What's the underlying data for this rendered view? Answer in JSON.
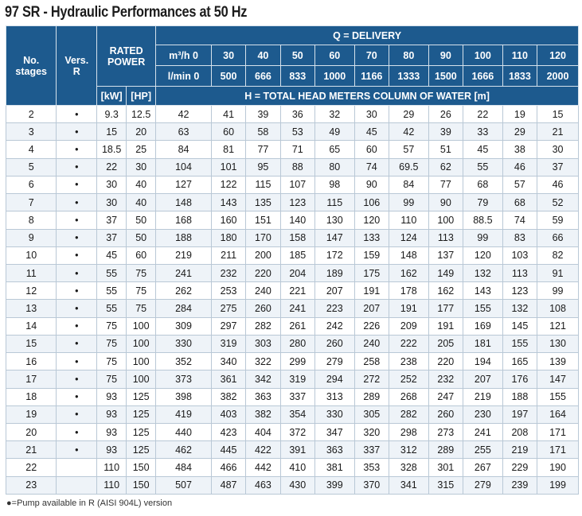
{
  "title": "97 SR - Hydraulic Performances at 50 Hz",
  "header": {
    "no_stages": "No. stages",
    "vers": "Vers. R",
    "rated_power": "RATED POWER",
    "delivery": "Q = DELIVERY",
    "m3h_label": "m³/h 0",
    "lmin_label": "l/min 0",
    "kw": "[kW]",
    "hp": "[HP]",
    "head": "H = TOTAL HEAD METERS COLUMN OF WATER [m]",
    "m3h_values": [
      "30",
      "40",
      "50",
      "60",
      "70",
      "80",
      "90",
      "100",
      "110",
      "120"
    ],
    "lmin_values": [
      "500",
      "666",
      "833",
      "1000",
      "1166",
      "1333",
      "1500",
      "1666",
      "1833",
      "2000"
    ]
  },
  "rows": [
    [
      "2",
      "•",
      "9.3",
      "12.5",
      "42",
      "41",
      "39",
      "36",
      "32",
      "30",
      "29",
      "26",
      "22",
      "19",
      "15"
    ],
    [
      "3",
      "•",
      "15",
      "20",
      "63",
      "60",
      "58",
      "53",
      "49",
      "45",
      "42",
      "39",
      "33",
      "29",
      "21"
    ],
    [
      "4",
      "•",
      "18.5",
      "25",
      "84",
      "81",
      "77",
      "71",
      "65",
      "60",
      "57",
      "51",
      "45",
      "38",
      "30"
    ],
    [
      "5",
      "•",
      "22",
      "30",
      "104",
      "101",
      "95",
      "88",
      "80",
      "74",
      "69.5",
      "62",
      "55",
      "46",
      "37"
    ],
    [
      "6",
      "•",
      "30",
      "40",
      "127",
      "122",
      "115",
      "107",
      "98",
      "90",
      "84",
      "77",
      "68",
      "57",
      "46"
    ],
    [
      "7",
      "•",
      "30",
      "40",
      "148",
      "143",
      "135",
      "123",
      "115",
      "106",
      "99",
      "90",
      "79",
      "68",
      "52"
    ],
    [
      "8",
      "•",
      "37",
      "50",
      "168",
      "160",
      "151",
      "140",
      "130",
      "120",
      "110",
      "100",
      "88.5",
      "74",
      "59"
    ],
    [
      "9",
      "•",
      "37",
      "50",
      "188",
      "180",
      "170",
      "158",
      "147",
      "133",
      "124",
      "113",
      "99",
      "83",
      "66"
    ],
    [
      "10",
      "•",
      "45",
      "60",
      "219",
      "211",
      "200",
      "185",
      "172",
      "159",
      "148",
      "137",
      "120",
      "103",
      "82"
    ],
    [
      "11",
      "•",
      "55",
      "75",
      "241",
      "232",
      "220",
      "204",
      "189",
      "175",
      "162",
      "149",
      "132",
      "113",
      "91"
    ],
    [
      "12",
      "•",
      "55",
      "75",
      "262",
      "253",
      "240",
      "221",
      "207",
      "191",
      "178",
      "162",
      "143",
      "123",
      "99"
    ],
    [
      "13",
      "•",
      "55",
      "75",
      "284",
      "275",
      "260",
      "241",
      "223",
      "207",
      "191",
      "177",
      "155",
      "132",
      "108"
    ],
    [
      "14",
      "•",
      "75",
      "100",
      "309",
      "297",
      "282",
      "261",
      "242",
      "226",
      "209",
      "191",
      "169",
      "145",
      "121"
    ],
    [
      "15",
      "•",
      "75",
      "100",
      "330",
      "319",
      "303",
      "280",
      "260",
      "240",
      "222",
      "205",
      "181",
      "155",
      "130"
    ],
    [
      "16",
      "•",
      "75",
      "100",
      "352",
      "340",
      "322",
      "299",
      "279",
      "258",
      "238",
      "220",
      "194",
      "165",
      "139"
    ],
    [
      "17",
      "•",
      "75",
      "100",
      "373",
      "361",
      "342",
      "319",
      "294",
      "272",
      "252",
      "232",
      "207",
      "176",
      "147"
    ],
    [
      "18",
      "•",
      "93",
      "125",
      "398",
      "382",
      "363",
      "337",
      "313",
      "289",
      "268",
      "247",
      "219",
      "188",
      "155"
    ],
    [
      "19",
      "•",
      "93",
      "125",
      "419",
      "403",
      "382",
      "354",
      "330",
      "305",
      "282",
      "260",
      "230",
      "197",
      "164"
    ],
    [
      "20",
      "•",
      "93",
      "125",
      "440",
      "423",
      "404",
      "372",
      "347",
      "320",
      "298",
      "273",
      "241",
      "208",
      "171"
    ],
    [
      "21",
      "•",
      "93",
      "125",
      "462",
      "445",
      "422",
      "391",
      "363",
      "337",
      "312",
      "289",
      "255",
      "219",
      "171"
    ],
    [
      "22",
      "",
      "110",
      "150",
      "484",
      "466",
      "442",
      "410",
      "381",
      "353",
      "328",
      "301",
      "267",
      "229",
      "190"
    ],
    [
      "23",
      "",
      "110",
      "150",
      "507",
      "487",
      "463",
      "430",
      "399",
      "370",
      "341",
      "315",
      "279",
      "239",
      "199"
    ]
  ],
  "footnote": "●=Pump available in R (AISI 904L) version",
  "colors": {
    "header_bg": "#1d5a8e",
    "stripe": "#eef3f8",
    "border": "#b9c8d6"
  }
}
